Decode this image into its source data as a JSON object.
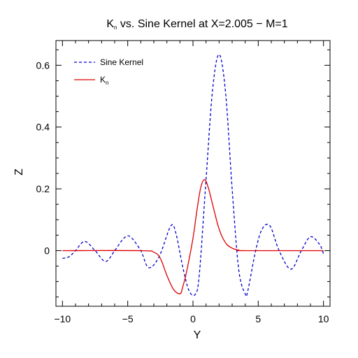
{
  "chart_data": {
    "type": "line",
    "title": {
      "main": "K",
      "sub": "n",
      "rest": " vs. Sine Kernel at X=2.005 − M=1"
    },
    "xlabel": "Y",
    "ylabel": "Z",
    "xlim": [
      -10.5,
      10.5
    ],
    "ylim": [
      -0.18,
      0.68
    ],
    "xticks": [
      -10,
      -5,
      0,
      5,
      10
    ],
    "xtick_labels": [
      "−10",
      "−5",
      "0",
      "5",
      "10"
    ],
    "yticks": [
      0,
      0.2,
      0.4,
      0.6
    ],
    "ytick_labels": [
      "0",
      "0.2",
      "0.4",
      "0.6"
    ],
    "grid": false,
    "legend_position": "top-left",
    "series": [
      {
        "name": "Sine Kernel",
        "color": "#0000cc",
        "style": "dashed",
        "x": [
          -10,
          -9.5,
          -9,
          -8.3,
          -7.5,
          -6.7,
          -6,
          -5.3,
          -4.8,
          -4,
          -3.4,
          -2.6,
          -1.7,
          -1.3,
          -0.8,
          -0.3,
          0.2,
          0.5,
          1.0,
          1.5,
          2.0,
          2.5,
          3.0,
          3.5,
          4.0,
          4.2,
          4.8,
          5.3,
          5.9,
          6.6,
          7.5,
          8.3,
          9.0,
          9.7,
          10.0
        ],
        "y": [
          -0.025,
          -0.02,
          0.0,
          0.03,
          0.0,
          -0.035,
          0.0,
          0.04,
          0.045,
          0.0,
          -0.055,
          -0.02,
          0.08,
          0.055,
          -0.05,
          -0.13,
          -0.14,
          -0.07,
          0.23,
          0.52,
          0.635,
          0.51,
          0.2,
          -0.06,
          -0.14,
          -0.13,
          0.0,
          0.07,
          0.08,
          0.0,
          -0.06,
          0.0,
          0.045,
          0.02,
          -0.01
        ]
      },
      {
        "name": "K",
        "name_sub": "n",
        "color": "#dd0000",
        "style": "solid",
        "x": [
          -10,
          -4.0,
          -3.0,
          -2.5,
          -2.0,
          -1.5,
          -1.0,
          -0.8,
          -0.5,
          0.0,
          0.3,
          0.6,
          0.9,
          1.2,
          1.5,
          2.0,
          2.5,
          3.0,
          3.5,
          4.0,
          10.0
        ],
        "y": [
          0.0,
          0.0,
          -0.005,
          -0.025,
          -0.08,
          -0.125,
          -0.14,
          -0.12,
          -0.07,
          0.04,
          0.13,
          0.205,
          0.23,
          0.2,
          0.15,
          0.07,
          0.025,
          0.008,
          0.002,
          0.0,
          0.0
        ]
      }
    ]
  }
}
